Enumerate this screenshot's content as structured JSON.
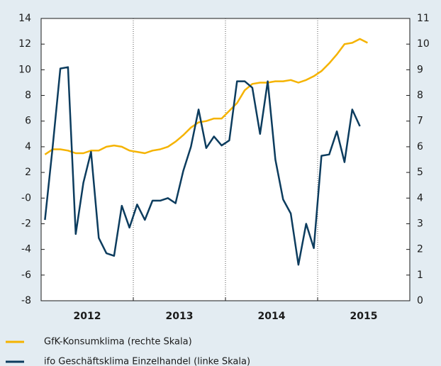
{
  "chart_data": {
    "type": "line",
    "categories": [
      null,
      null,
      null,
      null,
      null,
      null,
      null,
      null,
      null,
      null,
      null,
      null,
      null,
      null,
      null,
      null,
      null,
      null,
      null,
      null,
      null,
      null,
      null,
      null,
      null,
      null,
      null,
      null,
      null,
      null,
      null,
      null,
      null,
      null,
      null,
      null,
      null,
      null,
      null,
      null,
      null,
      null,
      null
    ],
    "year_labels": [
      "2012",
      "2013",
      "2014",
      "2015"
    ],
    "ylim": [
      -8,
      14
    ],
    "yticks": [
      -8,
      -6,
      -4,
      -2,
      {
        "value": 0,
        "label": "-0"
      },
      2,
      4,
      6,
      8,
      10,
      12,
      14
    ],
    "y2lim": [
      0,
      11
    ],
    "y2ticks": [
      0,
      1,
      2,
      3,
      4,
      5,
      6,
      7,
      8,
      9,
      10,
      11
    ],
    "series": [
      {
        "name": "GfK-Konsumklima (rechte Skala)",
        "color": "#f5b300",
        "axis": "y2",
        "values": [
          5.7,
          5.9,
          5.9,
          5.85,
          5.75,
          5.75,
          5.85,
          5.85,
          6.0,
          6.05,
          6.0,
          5.85,
          5.8,
          5.75,
          5.85,
          5.9,
          6.0,
          6.2,
          6.45,
          6.75,
          6.95,
          7.0,
          7.1,
          7.1,
          7.4,
          7.7,
          8.2,
          8.45,
          8.5,
          8.5,
          8.55,
          8.55,
          8.6,
          8.5,
          8.6,
          8.75,
          8.95,
          9.25,
          9.6,
          10.0,
          10.05,
          10.2,
          10.05
        ]
      },
      {
        "name": "ifo Geschäftsklima Einzelhandel (linke Skala)",
        "color": "#0c3c5e",
        "axis": "y",
        "values": [
          -1.7,
          4,
          10.1,
          10.2,
          -2.8,
          1.2,
          3.6,
          -3.1,
          -4.3,
          -4.5,
          -0.6,
          -2.3,
          -0.5,
          -1.7,
          -0.2,
          -0.2,
          0,
          -0.4,
          2.1,
          4,
          6.9,
          3.9,
          4.8,
          4.1,
          4.5,
          9.1,
          9.1,
          8.6,
          5,
          9.1,
          3,
          -0.1,
          -1.2,
          -5.2,
          -2,
          -3.9,
          3.3,
          3.4,
          5.2,
          2.8,
          6.9,
          5.6,
          null
        ]
      }
    ]
  }
}
